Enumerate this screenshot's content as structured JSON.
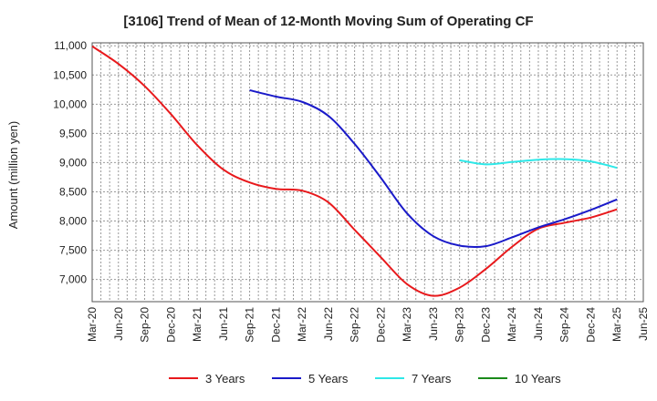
{
  "chart_data": {
    "type": "line",
    "title": "[3106]  Trend of Mean of 12-Month Moving Sum of Operating CF",
    "xlabel": "",
    "ylabel": "Amount (million yen)",
    "ylim": [
      6620,
      11050
    ],
    "yticks": [
      7000,
      7500,
      8000,
      8500,
      9000,
      9500,
      10000,
      10500,
      11000
    ],
    "ytick_labels": [
      "7,000",
      "7,500",
      "8,000",
      "8,500",
      "9,000",
      "9,500",
      "10,000",
      "10,500",
      "11,000"
    ],
    "x_start": "Mar-20",
    "x_end": "Jun-25",
    "categories": [
      "Mar-20",
      "Jun-20",
      "Sep-20",
      "Dec-20",
      "Mar-21",
      "Jun-21",
      "Sep-21",
      "Dec-21",
      "Mar-22",
      "Jun-22",
      "Sep-22",
      "Dec-22",
      "Mar-23",
      "Jun-23",
      "Sep-23",
      "Dec-23",
      "Mar-24",
      "Jun-24",
      "Sep-24",
      "Dec-24",
      "Mar-25",
      "Jun-25"
    ],
    "grid": true,
    "legend_position": "bottom",
    "series": [
      {
        "name": "3 Years",
        "color": "#e8191c",
        "points": [
          [
            "Mar-20",
            10990
          ],
          [
            "Jun-20",
            10690
          ],
          [
            "Sep-20",
            10310
          ],
          [
            "Dec-20",
            9830
          ],
          [
            "Mar-21",
            9300
          ],
          [
            "Jun-21",
            8880
          ],
          [
            "Sep-21",
            8660
          ],
          [
            "Dec-21",
            8550
          ],
          [
            "Mar-22",
            8520
          ],
          [
            "Jun-22",
            8320
          ],
          [
            "Sep-22",
            7850
          ],
          [
            "Dec-22",
            7380
          ],
          [
            "Mar-23",
            6920
          ],
          [
            "Jun-23",
            6720
          ],
          [
            "Sep-23",
            6860
          ],
          [
            "Dec-23",
            7180
          ],
          [
            "Mar-24",
            7560
          ],
          [
            "Jun-24",
            7870
          ],
          [
            "Sep-24",
            7970
          ],
          [
            "Dec-24",
            8060
          ],
          [
            "Mar-25",
            8200
          ]
        ]
      },
      {
        "name": "5 Years",
        "color": "#1a1ac9",
        "points": [
          [
            "Sep-21",
            10240
          ],
          [
            "Dec-21",
            10130
          ],
          [
            "Mar-22",
            10040
          ],
          [
            "Jun-22",
            9800
          ],
          [
            "Sep-22",
            9320
          ],
          [
            "Dec-22",
            8740
          ],
          [
            "Mar-23",
            8130
          ],
          [
            "Jun-23",
            7740
          ],
          [
            "Sep-23",
            7580
          ],
          [
            "Dec-23",
            7570
          ],
          [
            "Mar-24",
            7720
          ],
          [
            "Jun-24",
            7890
          ],
          [
            "Sep-24",
            8030
          ],
          [
            "Dec-24",
            8190
          ],
          [
            "Mar-25",
            8370
          ]
        ]
      },
      {
        "name": "7 Years",
        "color": "#2ee8e8",
        "points": [
          [
            "Sep-23",
            9040
          ],
          [
            "Dec-23",
            8970
          ],
          [
            "Mar-24",
            9010
          ],
          [
            "Jun-24",
            9050
          ],
          [
            "Sep-24",
            9060
          ],
          [
            "Dec-24",
            9020
          ],
          [
            "Mar-25",
            8910
          ]
        ]
      },
      {
        "name": "10 Years",
        "color": "#1a8a1a",
        "points": []
      }
    ]
  }
}
